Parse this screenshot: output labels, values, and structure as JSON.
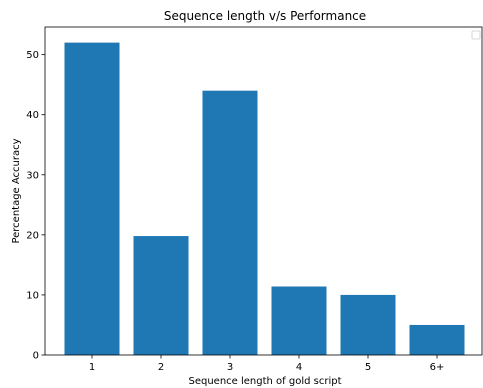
{
  "chart_data": {
    "type": "bar",
    "title": "Sequence length v/s Performance",
    "xlabel": "Sequence length of gold script",
    "ylabel": "Percentage Accuracy",
    "categories": [
      "1",
      "2",
      "3",
      "4",
      "5",
      "6+"
    ],
    "values": [
      52,
      19.8,
      44,
      11.4,
      10,
      5
    ],
    "ylim": [
      0,
      54.6
    ],
    "yticks": [
      "0",
      "10",
      "20",
      "30",
      "40",
      "50"
    ],
    "ytick_values": [
      0,
      10,
      20,
      30,
      40,
      50
    ],
    "bar_color": "#1f77b4",
    "grid": false,
    "legend": "top-right (empty)"
  }
}
